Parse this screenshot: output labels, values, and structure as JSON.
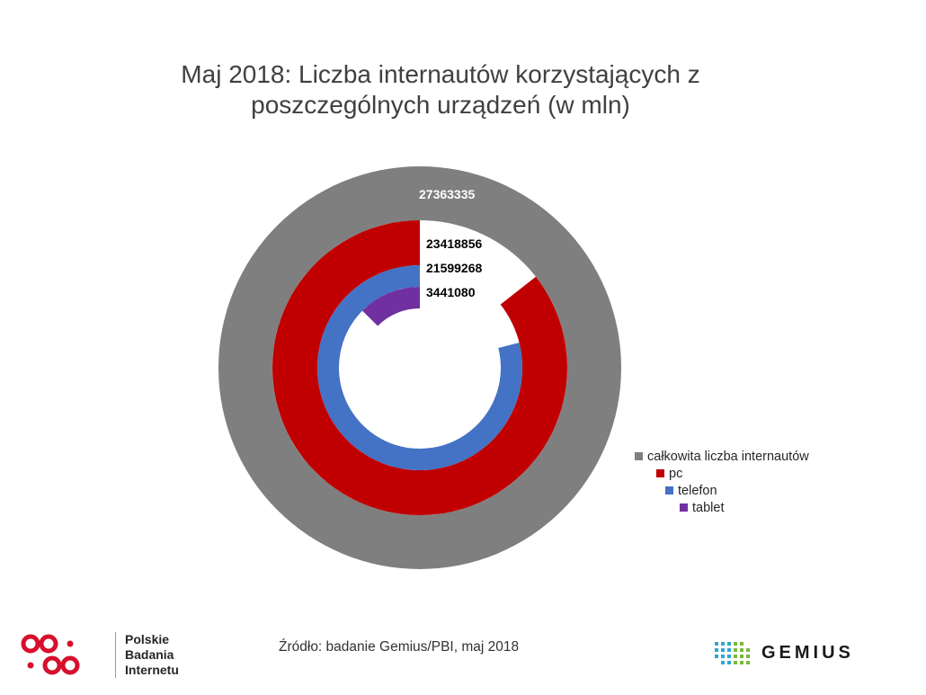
{
  "chart_data": {
    "type": "doughnut",
    "title_lines": [
      "Maj 2018: Liczba internautów korzystających z",
      "poszczególnych urządzeń (w mln)"
    ],
    "series": [
      {
        "name": "całkowita liczba internautów",
        "value": 27363335,
        "label": "27363335",
        "color": "#7f7f7f"
      },
      {
        "name": "pc",
        "value": 23418856,
        "label": "23418856",
        "color": "#c00000"
      },
      {
        "name": "telefon",
        "value": 21599268,
        "label": "21599268",
        "color": "#4472c4"
      },
      {
        "name": "tablet",
        "value": 3441080,
        "label": "3441080",
        "color": "#7030a0"
      }
    ],
    "total": 27363335,
    "legend_position": "bottom-right"
  },
  "footer": {
    "source": "Źródło: badanie Gemius/PBI, maj 2018",
    "pbi_lines": [
      "Polskie",
      "Badania",
      "Internetu"
    ],
    "gemius_word": "GEMIUS",
    "pbi_color": "#d6102c",
    "gemius_dot_colors": [
      "#2ea6d6",
      "#79b83a"
    ]
  }
}
